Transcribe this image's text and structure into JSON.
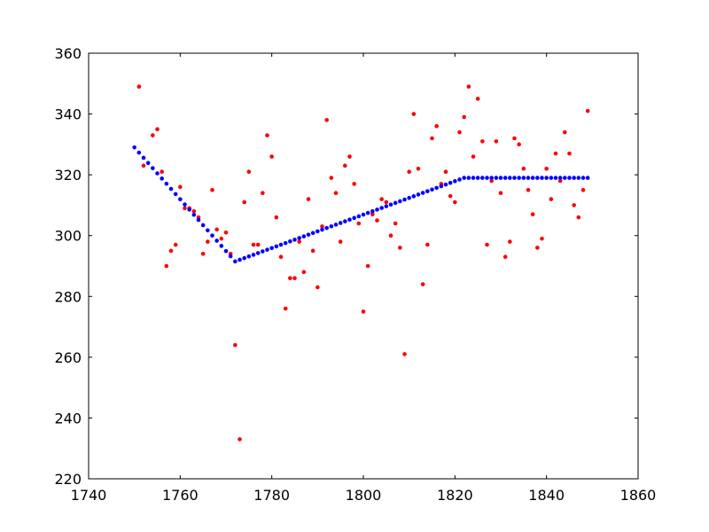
{
  "chart_data": {
    "type": "scatter",
    "title": "",
    "xlabel": "",
    "ylabel": "",
    "xlim": [
      1740,
      1860
    ],
    "ylim": [
      220,
      360
    ],
    "xticks": [
      1740,
      1760,
      1780,
      1800,
      1820,
      1840,
      1860
    ],
    "yticks": [
      220,
      240,
      260,
      280,
      300,
      320,
      340,
      360
    ],
    "grid": false,
    "legend": "none",
    "colors": {
      "observed": "#ff0000",
      "fit": "#0000ff",
      "frame": "#000000",
      "background": "#ffffff"
    },
    "series": [
      {
        "color": "#ff0000",
        "points": [
          [
            1751,
            349
          ],
          [
            1752,
            323
          ],
          [
            1754,
            333
          ],
          [
            1755,
            335
          ],
          [
            1756,
            321
          ],
          [
            1757,
            290
          ],
          [
            1758,
            295
          ],
          [
            1759,
            297
          ],
          [
            1760,
            316
          ],
          [
            1761,
            309
          ],
          [
            1762,
            309
          ],
          [
            1763,
            308
          ],
          [
            1764,
            306
          ],
          [
            1765,
            294
          ],
          [
            1766,
            298
          ],
          [
            1767,
            315
          ],
          [
            1768,
            302
          ],
          [
            1769,
            299
          ],
          [
            1770,
            301
          ],
          [
            1771,
            294
          ],
          [
            1772,
            264
          ],
          [
            1773,
            233
          ],
          [
            1774,
            311
          ],
          [
            1775,
            321
          ],
          [
            1776,
            297
          ],
          [
            1777,
            297
          ],
          [
            1778,
            314
          ],
          [
            1779,
            333
          ],
          [
            1780,
            326
          ],
          [
            1781,
            306
          ],
          [
            1782,
            293
          ],
          [
            1783,
            276
          ],
          [
            1784,
            286
          ],
          [
            1785,
            286
          ],
          [
            1786,
            298
          ],
          [
            1787,
            288
          ],
          [
            1788,
            312
          ],
          [
            1789,
            295
          ],
          [
            1790,
            283
          ],
          [
            1791,
            303
          ],
          [
            1792,
            338
          ],
          [
            1793,
            319
          ],
          [
            1794,
            314
          ],
          [
            1795,
            298
          ],
          [
            1796,
            323
          ],
          [
            1797,
            326
          ],
          [
            1798,
            317
          ],
          [
            1799,
            304
          ],
          [
            1800,
            275
          ],
          [
            1801,
            290
          ],
          [
            1802,
            307
          ],
          [
            1803,
            305
          ],
          [
            1804,
            312
          ],
          [
            1805,
            311
          ],
          [
            1806,
            300
          ],
          [
            1807,
            304
          ],
          [
            1808,
            296
          ],
          [
            1809,
            261
          ],
          [
            1810,
            321
          ],
          [
            1811,
            340
          ],
          [
            1812,
            322
          ],
          [
            1813,
            284
          ],
          [
            1814,
            297
          ],
          [
            1815,
            332
          ],
          [
            1816,
            336
          ],
          [
            1817,
            317
          ],
          [
            1818,
            321
          ],
          [
            1819,
            313
          ],
          [
            1820,
            311
          ],
          [
            1821,
            334
          ],
          [
            1822,
            339
          ],
          [
            1823,
            349
          ],
          [
            1824,
            326
          ],
          [
            1825,
            345
          ],
          [
            1826,
            331
          ],
          [
            1827,
            297
          ],
          [
            1828,
            318
          ],
          [
            1829,
            331
          ],
          [
            1830,
            314
          ],
          [
            1831,
            293
          ],
          [
            1832,
            298
          ],
          [
            1833,
            332
          ],
          [
            1834,
            330
          ],
          [
            1835,
            322
          ],
          [
            1836,
            315
          ],
          [
            1837,
            307
          ],
          [
            1838,
            296
          ],
          [
            1839,
            299
          ],
          [
            1840,
            322
          ],
          [
            1841,
            312
          ],
          [
            1842,
            327
          ],
          [
            1843,
            318
          ],
          [
            1844,
            334
          ],
          [
            1845,
            327
          ],
          [
            1846,
            310
          ],
          [
            1847,
            306
          ],
          [
            1848,
            315
          ],
          [
            1849,
            341
          ]
        ]
      },
      {
        "color": "#0000ff",
        "segments": [
          {
            "x_from": 1750,
            "x_to": 1772,
            "y_from": 329,
            "y_to": 291.5
          },
          {
            "x_from": 1772,
            "x_to": 1822,
            "y_from": 291.5,
            "y_to": 319
          },
          {
            "x_from": 1822,
            "x_to": 1849,
            "y_from": 319,
            "y_to": 319
          }
        ]
      }
    ]
  }
}
